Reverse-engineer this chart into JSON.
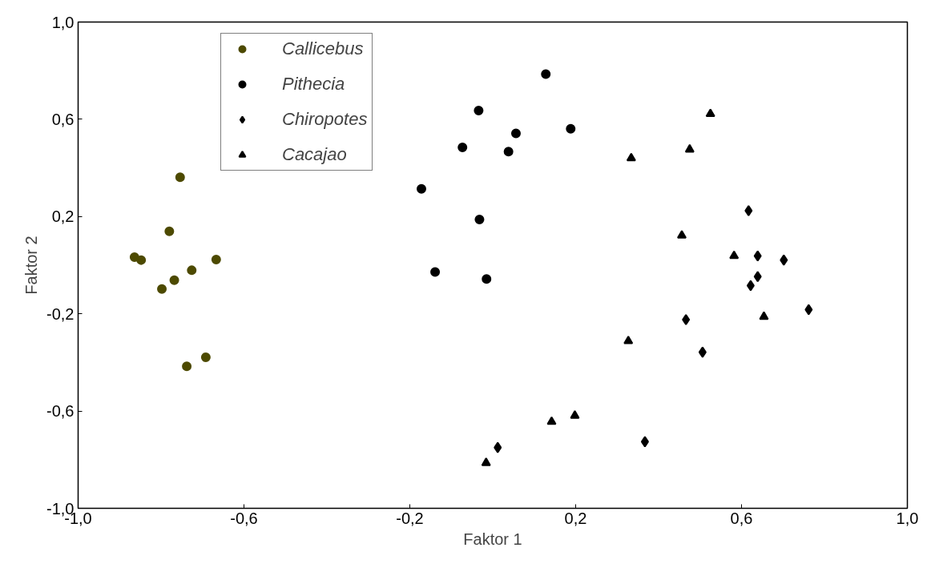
{
  "chart_data": {
    "type": "scatter",
    "xlabel": "Faktor 1",
    "ylabel": "Faktor 2",
    "xlim": [
      -1.0,
      1.0
    ],
    "ylim": [
      -1.0,
      1.0
    ],
    "xticks": [
      {
        "value": -1.0,
        "label": "-1,0"
      },
      {
        "value": -0.6,
        "label": "-0,6"
      },
      {
        "value": -0.2,
        "label": "-0,2"
      },
      {
        "value": 0.2,
        "label": "0,2"
      },
      {
        "value": 0.6,
        "label": "0,6"
      },
      {
        "value": 1.0,
        "label": "1,0"
      }
    ],
    "yticks": [
      {
        "value": -1.0,
        "label": "-1,0"
      },
      {
        "value": -0.6,
        "label": "-0,6"
      },
      {
        "value": -0.2,
        "label": "-0,2"
      },
      {
        "value": 0.2,
        "label": "0,2"
      },
      {
        "value": 0.6,
        "label": "0,6"
      },
      {
        "value": 1.0,
        "label": "1,0"
      }
    ],
    "grid": false,
    "legend": "top left",
    "series": [
      {
        "name": "Callicebus",
        "color": "#4d4a00",
        "marker": "circle",
        "x": [
          -0.864,
          -0.848,
          -0.754,
          -0.78,
          -0.667,
          -0.726,
          -0.768,
          -0.798,
          -0.692,
          -0.738
        ],
        "values": [
          0.033,
          0.021,
          0.362,
          0.139,
          0.023,
          -0.021,
          -0.062,
          -0.098,
          -0.379,
          -0.416
        ]
      },
      {
        "name": "Pithecia",
        "color": "#000000",
        "marker": "circle",
        "x": [
          0.128,
          -0.034,
          0.188,
          0.056,
          -0.073,
          0.038,
          -0.172,
          -0.032,
          -0.139,
          -0.015
        ],
        "values": [
          0.786,
          0.636,
          0.561,
          0.542,
          0.484,
          0.467,
          0.314,
          0.188,
          -0.028,
          -0.057
        ]
      },
      {
        "name": "Chiropotes",
        "color": "#000000",
        "marker": "diamond",
        "x": [
          0.617,
          0.639,
          0.702,
          0.639,
          0.622,
          0.762,
          0.466,
          0.506,
          0.367,
          0.012
        ],
        "values": [
          0.224,
          0.038,
          0.021,
          -0.047,
          -0.084,
          -0.183,
          -0.224,
          -0.358,
          -0.726,
          -0.75
        ]
      },
      {
        "name": "Cacajao",
        "color": "#000000",
        "marker": "triangle",
        "x": [
          0.525,
          0.475,
          0.334,
          0.456,
          0.582,
          0.654,
          0.327,
          0.198,
          0.142,
          -0.016
        ],
        "values": [
          0.622,
          0.476,
          0.44,
          0.122,
          0.038,
          -0.212,
          -0.312,
          -0.619,
          -0.644,
          -0.813
        ]
      }
    ]
  }
}
